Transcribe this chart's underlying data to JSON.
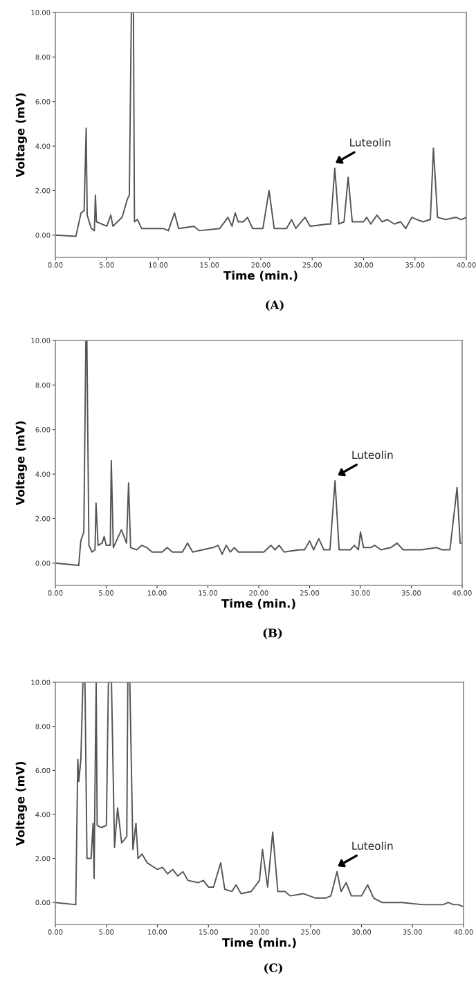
{
  "chart_data": [
    {
      "type": "line",
      "xlabel": "Time (min.)",
      "ylabel": "Voltage (mV)",
      "xlim": [
        0,
        40
      ],
      "ylim": [
        -1,
        10
      ],
      "xticks": [
        {
          "value": 0,
          "label": "0.00"
        },
        {
          "value": 5,
          "label": "5.00"
        },
        {
          "value": 10,
          "label": "10.00"
        },
        {
          "value": 15,
          "label": "15.00"
        },
        {
          "value": 20,
          "label": "20.00"
        },
        {
          "value": 25,
          "label": "25.00"
        },
        {
          "value": 30,
          "label": "30.00"
        },
        {
          "value": 35,
          "label": "35.00"
        },
        {
          "value": 40,
          "label": "40.00"
        }
      ],
      "yticks": [
        {
          "value": 0,
          "label": "0.00"
        },
        {
          "value": 2,
          "label": "2.00"
        },
        {
          "value": 4,
          "label": "4.00"
        },
        {
          "value": 6,
          "label": "6.00"
        },
        {
          "value": 8,
          "label": "8.00"
        },
        {
          "value": 10,
          "label": "10.00"
        }
      ],
      "grid": false,
      "legend": false,
      "annotations": [
        {
          "text": "Luteolin",
          "x": 27.1,
          "y": 3.2
        },
        "(A)"
      ],
      "series": [
        {
          "color": "#555555",
          "x": [
            0,
            2,
            2.5,
            2.8,
            3.0,
            3.1,
            3.5,
            3.8,
            3.9,
            4.0,
            4.5,
            5.0,
            5.4,
            5.6,
            6.5,
            7.0,
            7.2,
            7.4,
            7.6,
            7.7,
            8.0,
            8.4,
            9.5,
            10.5,
            11.0,
            11.6,
            12,
            13.5,
            14,
            16,
            16.8,
            17.2,
            17.5,
            17.8,
            18.3,
            18.7,
            19.2,
            20.2,
            20.8,
            21.3,
            22.5,
            23.0,
            23.4,
            24.3,
            24.8,
            26.5,
            26.8,
            27.2,
            27.6,
            28.1,
            28.5,
            28.9,
            30.0,
            30.3,
            30.7,
            31.3,
            31.8,
            32.3,
            33.0,
            33.6,
            34.1,
            34.7,
            35.2,
            35.8,
            36.5,
            36.8,
            37.2,
            38,
            39,
            39.5,
            40
          ],
          "values": [
            0,
            -0.05,
            1.0,
            1.1,
            4.8,
            0.9,
            0.3,
            0.2,
            1.8,
            0.6,
            0.5,
            0.4,
            0.9,
            0.4,
            0.8,
            1.6,
            1.8,
            10,
            10,
            0.6,
            0.7,
            0.3,
            0.3,
            0.3,
            0.2,
            1.0,
            0.3,
            0.4,
            0.2,
            0.3,
            0.8,
            0.4,
            1.0,
            0.6,
            0.6,
            0.8,
            0.3,
            0.3,
            2.0,
            0.3,
            0.3,
            0.7,
            0.3,
            0.8,
            0.4,
            0.5,
            0.5,
            3.0,
            0.5,
            0.6,
            2.6,
            0.6,
            0.6,
            0.8,
            0.5,
            0.9,
            0.6,
            0.7,
            0.5,
            0.6,
            0.3,
            0.8,
            0.7,
            0.6,
            0.7,
            3.9,
            0.8,
            0.7,
            0.8,
            0.7,
            0.8
          ]
        }
      ]
    },
    {
      "type": "line",
      "xlabel": "Time (min.)",
      "ylabel": "Voltage (mV)",
      "xlim": [
        0,
        40
      ],
      "ylim": [
        -1,
        10
      ],
      "xticks": [
        {
          "value": 0,
          "label": "0.00"
        },
        {
          "value": 5,
          "label": "5.00"
        },
        {
          "value": 10,
          "label": "10.00"
        },
        {
          "value": 15,
          "label": "15.00"
        },
        {
          "value": 20,
          "label": "20.00"
        },
        {
          "value": 25,
          "label": "25.00"
        },
        {
          "value": 30,
          "label": "30.00"
        },
        {
          "value": 35,
          "label": "35.00"
        },
        {
          "value": 40,
          "label": "40.00"
        }
      ],
      "yticks": [
        {
          "value": 0,
          "label": "0.00"
        },
        {
          "value": 2,
          "label": "2.00"
        },
        {
          "value": 4,
          "label": "4.00"
        },
        {
          "value": 6,
          "label": "6.00"
        },
        {
          "value": 8,
          "label": "8.00"
        },
        {
          "value": 10,
          "label": "10.00"
        }
      ],
      "grid": false,
      "legend": false,
      "annotations": [
        {
          "text": "Luteolin",
          "x": 27.6,
          "y": 3.9
        },
        "(B)"
      ],
      "series": [
        {
          "color": "#555555",
          "x": [
            0,
            2.3,
            2.5,
            2.8,
            3.0,
            3.1,
            3.3,
            3.6,
            3.9,
            4.0,
            4.2,
            4.6,
            4.8,
            5.0,
            5.4,
            5.5,
            5.7,
            6.0,
            6.5,
            7.0,
            7.2,
            7.4,
            8.0,
            8.5,
            9.0,
            9.5,
            10.5,
            11.0,
            11.5,
            12.5,
            13.0,
            13.5,
            14.5,
            15.5,
            16.0,
            16.4,
            16.8,
            17.2,
            17.6,
            18.0,
            19.5,
            20.5,
            21.2,
            21.6,
            22.0,
            22.5,
            24.0,
            24.5,
            25.0,
            25.4,
            25.9,
            26.4,
            27.0,
            27.5,
            27.9,
            29.0,
            29.4,
            29.8,
            30.0,
            30.3,
            31.0,
            31.4,
            32.0,
            33.0,
            33.6,
            34.2,
            35,
            36,
            37.5,
            38,
            38.8,
            39.5,
            39.8,
            40
          ],
          "values": [
            0,
            -0.1,
            1.0,
            1.4,
            10,
            10,
            0.8,
            0.5,
            0.6,
            2.7,
            0.8,
            0.9,
            1.2,
            0.8,
            0.8,
            4.6,
            0.7,
            1.0,
            1.5,
            0.9,
            3.6,
            0.7,
            0.6,
            0.8,
            0.7,
            0.5,
            0.5,
            0.7,
            0.5,
            0.5,
            0.9,
            0.5,
            0.6,
            0.7,
            0.8,
            0.4,
            0.8,
            0.5,
            0.7,
            0.5,
            0.5,
            0.5,
            0.8,
            0.6,
            0.8,
            0.5,
            0.6,
            0.6,
            1.0,
            0.6,
            1.1,
            0.6,
            0.6,
            3.7,
            0.6,
            0.6,
            0.8,
            0.6,
            1.4,
            0.7,
            0.7,
            0.8,
            0.6,
            0.7,
            0.9,
            0.6,
            0.6,
            0.6,
            0.7,
            0.6,
            0.6,
            3.4,
            0.9,
            0.9
          ]
        }
      ]
    },
    {
      "type": "line",
      "xlabel": "Time (min.)",
      "ylabel": "Voltage (mV)",
      "xlim": [
        0,
        40
      ],
      "ylim": [
        -1,
        10
      ],
      "xticks": [
        {
          "value": 0,
          "label": "0.00"
        },
        {
          "value": 5,
          "label": "5.00"
        },
        {
          "value": 10,
          "label": "10.00"
        },
        {
          "value": 15,
          "label": "15.00"
        },
        {
          "value": 20,
          "label": "20.00"
        },
        {
          "value": 25,
          "label": "25.00"
        },
        {
          "value": 30,
          "label": "30.00"
        },
        {
          "value": 35,
          "label": "35.00"
        },
        {
          "value": 40,
          "label": "40.00"
        }
      ],
      "yticks": [
        {
          "value": 0,
          "label": "0.00"
        },
        {
          "value": 2,
          "label": "2.00"
        },
        {
          "value": 4,
          "label": "4.00"
        },
        {
          "value": 6,
          "label": "6.00"
        },
        {
          "value": 8,
          "label": "8.00"
        },
        {
          "value": 10,
          "label": "10.00"
        }
      ],
      "grid": false,
      "legend": false,
      "annotations": [
        {
          "text": "Luteolin",
          "x": 27.5,
          "y": 1.6
        },
        "(C)"
      ],
      "series": [
        {
          "color": "#555555",
          "x": [
            0,
            2.0,
            2.2,
            2.3,
            2.5,
            2.7,
            2.9,
            3.1,
            3.5,
            3.7,
            3.8,
            3.9,
            4.0,
            4.1,
            4.5,
            5.0,
            5.2,
            5.5,
            5.8,
            6.1,
            6.5,
            7.0,
            7.1,
            7.3,
            7.6,
            7.9,
            8.1,
            8.5,
            9.0,
            10.0,
            10.5,
            11,
            11.5,
            12,
            12.5,
            13,
            14,
            14.5,
            15,
            15.5,
            16.2,
            16.6,
            17.3,
            17.7,
            18.2,
            19.2,
            20.0,
            20.3,
            20.8,
            21.3,
            21.8,
            22.5,
            23,
            24.3,
            25.5,
            26.5,
            27.0,
            27.6,
            28.0,
            28.5,
            29.0,
            30.0,
            30.6,
            31.2,
            32,
            34,
            36,
            38,
            38.5,
            39,
            39.5,
            40
          ],
          "values": [
            0,
            -0.1,
            6.5,
            5.5,
            6.5,
            10,
            10,
            2.0,
            2.0,
            3.6,
            1.1,
            5.9,
            10,
            3.5,
            3.4,
            3.5,
            10,
            10,
            2.5,
            4.3,
            2.7,
            3.0,
            10,
            10,
            2.4,
            3.6,
            2.0,
            2.2,
            1.8,
            1.5,
            1.6,
            1.3,
            1.5,
            1.2,
            1.4,
            1.0,
            0.9,
            1.0,
            0.7,
            0.7,
            1.8,
            0.6,
            0.5,
            0.8,
            0.4,
            0.5,
            1.0,
            2.4,
            0.7,
            3.2,
            0.5,
            0.5,
            0.3,
            0.4,
            0.2,
            0.2,
            0.3,
            1.4,
            0.5,
            0.9,
            0.3,
            0.3,
            0.8,
            0.2,
            0.0,
            0.0,
            -0.1,
            -0.1,
            0.0,
            -0.1,
            -0.1,
            -0.2
          ]
        }
      ]
    }
  ]
}
